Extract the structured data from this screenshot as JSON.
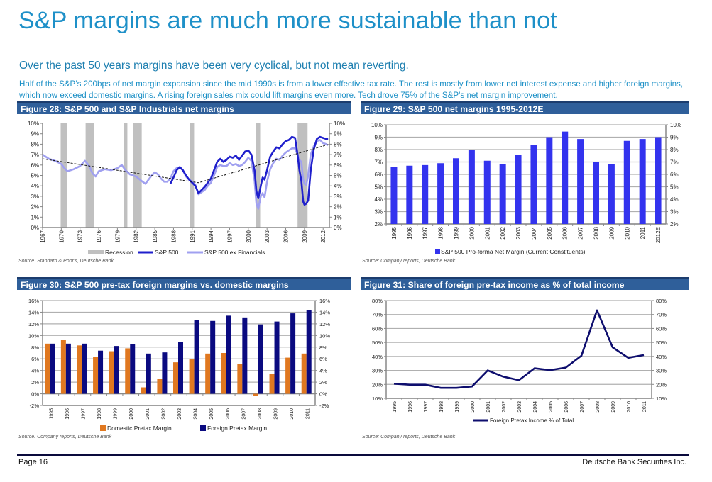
{
  "page": {
    "title": "S&P margins are much more sustainable than not",
    "subtitle": "Over the past 50 years margins have been very cyclical, but not mean reverting.",
    "summary": "Half of the S&P’s 200bps of net margin expansion since the mid 1990s is from a lower effective tax rate. The rest is mostly from lower net interest expense and higher foreign margins, which now exceed domestic margins. A rising foreign sales mix could lift margins even more. Tech drove 75% of the S&P’s net margin improvement.",
    "footer_left": "Page 16",
    "footer_right": "Deutsche Bank Securities Inc."
  },
  "colors": {
    "title": "#1e90c8",
    "header_bar": "#2f5f9a",
    "sp500": "#1f1fcc",
    "sp500_ex_fin": "#a0a0f0",
    "recession": "#c0c0c0",
    "bar_blue": "#3333ee",
    "domestic": "#e07820",
    "foreign": "#0a0a80",
    "line_navy": "#0e0e6e"
  },
  "chart_data": [
    {
      "id": "fig28",
      "type": "line",
      "title": "Figure 28: S&P 500 and S&P Industrials net margins",
      "source": "Source: Standard & Poor's, Deutsche Bank",
      "xlabel": "",
      "ylabel": "",
      "xlim": [
        1967,
        2013
      ],
      "ylim": [
        0,
        10
      ],
      "x_ticks": [
        "1967",
        "1970",
        "1973",
        "1976",
        "1979",
        "1982",
        "1985",
        "1988",
        "1991",
        "1994",
        "1997",
        "2000",
        "2003",
        "2006",
        "2009",
        "2012"
      ],
      "y_ticks": [
        "0%",
        "1%",
        "2%",
        "3%",
        "4%",
        "5%",
        "6%",
        "7%",
        "8%",
        "9%",
        "10%"
      ],
      "grid": false,
      "legend": "bottom",
      "legend_entries": [
        "Recession",
        "S&P 500",
        "S&P 500 ex Financials"
      ],
      "recessions": [
        [
          1969.9,
          1970.9
        ],
        [
          1973.9,
          1975.2
        ],
        [
          1980.0,
          1980.6
        ],
        [
          1981.5,
          1982.9
        ],
        [
          1990.6,
          1991.3
        ],
        [
          2001.2,
          2001.9
        ],
        [
          2007.9,
          2009.5
        ]
      ],
      "trend": [
        [
          1967,
          6.6
        ],
        [
          1992,
          4.3
        ],
        [
          2013,
          8.0
        ]
      ],
      "series": [
        {
          "name": "S&P 500",
          "x": [
            1987.5,
            1988,
            1988.5,
            1989,
            1989.5,
            1990,
            1990.5,
            1991,
            1991.5,
            1992,
            1992.5,
            1993,
            1993.5,
            1994,
            1994.5,
            1995,
            1995.5,
            1996,
            1996.5,
            1997,
            1997.5,
            1998,
            1998.5,
            1999,
            1999.5,
            2000,
            2000.5,
            2001,
            2001.3,
            2001.6,
            2002,
            2002.3,
            2002.6,
            2003,
            2003.5,
            2004,
            2004.5,
            2005,
            2005.5,
            2006,
            2006.5,
            2007,
            2007.5,
            2007.9,
            2008.2,
            2008.5,
            2008.8,
            2009,
            2009.3,
            2009.6,
            2010,
            2010.5,
            2011,
            2011.5,
            2012,
            2012.5,
            2012.8
          ],
          "values": [
            4.2,
            4.8,
            5.5,
            5.8,
            5.5,
            5.0,
            4.6,
            4.3,
            4.0,
            3.3,
            3.6,
            3.9,
            4.3,
            4.7,
            5.5,
            6.3,
            6.6,
            6.3,
            6.5,
            6.8,
            6.7,
            6.9,
            6.5,
            6.9,
            7.3,
            7.4,
            7.0,
            5.5,
            3.5,
            2.8,
            4.0,
            4.8,
            4.6,
            5.5,
            6.8,
            7.3,
            7.7,
            7.6,
            8.0,
            8.3,
            8.4,
            8.7,
            8.6,
            7.0,
            5.5,
            4.5,
            2.5,
            2.2,
            2.3,
            2.6,
            5.5,
            7.5,
            8.5,
            8.7,
            8.6,
            8.5,
            8.5
          ]
        },
        {
          "name": "S&P 500 ex Financials",
          "x": [
            1967,
            1968,
            1969,
            1970,
            1970.5,
            1971,
            1972,
            1973,
            1973.8,
            1974.5,
            1975,
            1975.5,
            1976,
            1977,
            1978,
            1979,
            1979.7,
            1980.3,
            1981,
            1982,
            1982.8,
            1983.5,
            1984,
            1984.5,
            1985,
            1985.5,
            1986,
            1986.5,
            1987,
            1987.5,
            1988,
            1988.5,
            1989,
            1989.5,
            1990,
            1990.5,
            1991,
            1991.5,
            1992,
            1992.5,
            1993,
            1993.5,
            1994,
            1994.5,
            1995,
            1995.5,
            1996,
            1996.5,
            1997,
            1997.5,
            1998,
            1998.5,
            1999,
            1999.5,
            2000,
            2000.5,
            2001,
            2001.3,
            2001.6,
            2002,
            2002.3,
            2002.6,
            2003,
            2003.5,
            2004,
            2004.5,
            2005,
            2005.5,
            2006,
            2006.5,
            2007,
            2007.5,
            2007.9,
            2008.2,
            2008.5,
            2008.8,
            2009,
            2009.3,
            2009.6,
            2010,
            2010.5,
            2011,
            2011.5,
            2012,
            2012.5,
            2012.8
          ],
          "values": [
            7.0,
            6.6,
            6.4,
            6.1,
            5.7,
            5.4,
            5.6,
            5.9,
            6.4,
            5.9,
            5.2,
            4.9,
            5.4,
            5.6,
            5.5,
            5.7,
            6.0,
            5.5,
            5.1,
            4.9,
            4.5,
            4.2,
            4.6,
            5.0,
            5.3,
            5.1,
            4.7,
            4.4,
            4.4,
            4.7,
            5.4,
            5.7,
            5.8,
            5.5,
            4.9,
            4.6,
            4.4,
            4.1,
            3.2,
            3.4,
            3.6,
            4.0,
            4.3,
            5.0,
            5.8,
            6.0,
            5.9,
            5.9,
            6.2,
            6.0,
            6.1,
            5.9,
            6.0,
            6.3,
            6.7,
            6.4,
            4.5,
            2.3,
            1.8,
            3.0,
            3.3,
            2.9,
            4.4,
            5.6,
            6.2,
            6.6,
            6.5,
            6.9,
            7.2,
            7.4,
            7.6,
            7.6,
            7.0,
            6.5,
            6.3,
            4.6,
            4.2,
            4.1,
            5.0,
            7.0,
            7.8,
            8.3,
            8.4,
            8.1,
            8.0,
            7.9
          ]
        }
      ]
    },
    {
      "id": "fig29",
      "type": "bar",
      "title": "Figure 29:  S&P 500 net margins 1995-2012E",
      "source": "Source: Company reports, Deutsche Bank",
      "xlabel": "",
      "ylabel": "",
      "ylim": [
        2,
        10
      ],
      "y_ticks": [
        "2%",
        "3%",
        "4%",
        "5%",
        "6%",
        "7%",
        "8%",
        "9%",
        "10%"
      ],
      "grid": true,
      "legend": "bottom",
      "categories": [
        "1995",
        "1996",
        "1997",
        "1998",
        "1999",
        "2000",
        "2001",
        "2002",
        "2003",
        "2004",
        "2005",
        "2006",
        "2007",
        "2008",
        "2009",
        "2010",
        "2011",
        "2012E"
      ],
      "series": [
        {
          "name": "S&P 500 Pro-forma Net Margin (Current Constituents)",
          "values": [
            6.6,
            6.7,
            6.75,
            6.9,
            7.3,
            8.0,
            7.1,
            6.8,
            7.55,
            8.4,
            9.0,
            9.45,
            8.85,
            7.0,
            6.85,
            8.7,
            8.85,
            9.0
          ]
        }
      ]
    },
    {
      "id": "fig30",
      "type": "bar",
      "title": "Figure 30: S&P 500 pre-tax foreign margins vs. domestic margins",
      "source": "Source: Company reports, Deutsche Bank",
      "xlabel": "",
      "ylabel": "",
      "ylim": [
        -2,
        16
      ],
      "y_ticks": [
        "-2%",
        "0%",
        "2%",
        "4%",
        "6%",
        "8%",
        "10%",
        "12%",
        "14%",
        "16%"
      ],
      "grid": true,
      "legend": "bottom",
      "categories": [
        "1995",
        "1996",
        "1997",
        "1998",
        "1999",
        "2000",
        "2001",
        "2002",
        "2003",
        "2004",
        "2005",
        "2006",
        "2007",
        "2008",
        "2009",
        "2010",
        "2011"
      ],
      "series": [
        {
          "name": "Domestic Pretax Margin",
          "values": [
            8.6,
            9.2,
            8.3,
            6.3,
            7.3,
            7.8,
            1.1,
            2.6,
            5.4,
            5.9,
            6.9,
            7.0,
            5.1,
            -0.3,
            3.4,
            6.2,
            6.9
          ]
        },
        {
          "name": "Foreign Pretax Margin",
          "values": [
            8.6,
            8.6,
            8.6,
            7.4,
            8.2,
            8.5,
            6.9,
            7.1,
            8.9,
            12.6,
            12.5,
            13.4,
            13.1,
            11.9,
            12.4,
            13.8,
            14.3
          ]
        }
      ]
    },
    {
      "id": "fig31",
      "type": "line",
      "title": "Figure 31: Share of foreign pre-tax income as % of total income",
      "source": "Source: Company reports, Deutsche Bank",
      "xlabel": "",
      "ylabel": "",
      "ylim": [
        10,
        80
      ],
      "y_ticks": [
        "10%",
        "20%",
        "30%",
        "40%",
        "50%",
        "60%",
        "70%",
        "80%"
      ],
      "grid": true,
      "legend": "bottom",
      "categories": [
        "1995",
        "1996",
        "1997",
        "1998",
        "1999",
        "2000",
        "2001",
        "2002",
        "2003",
        "2004",
        "2005",
        "2006",
        "2007",
        "2008",
        "2009",
        "2010",
        "2011"
      ],
      "series": [
        {
          "name": "Foreign Pretax Income % of Total",
          "values": [
            20.5,
            19.8,
            19.8,
            17.5,
            17.5,
            18.5,
            30.0,
            25.5,
            23.0,
            31.5,
            30.2,
            32.0,
            40.5,
            73.0,
            46.5,
            39.0,
            41.0
          ]
        }
      ]
    }
  ]
}
